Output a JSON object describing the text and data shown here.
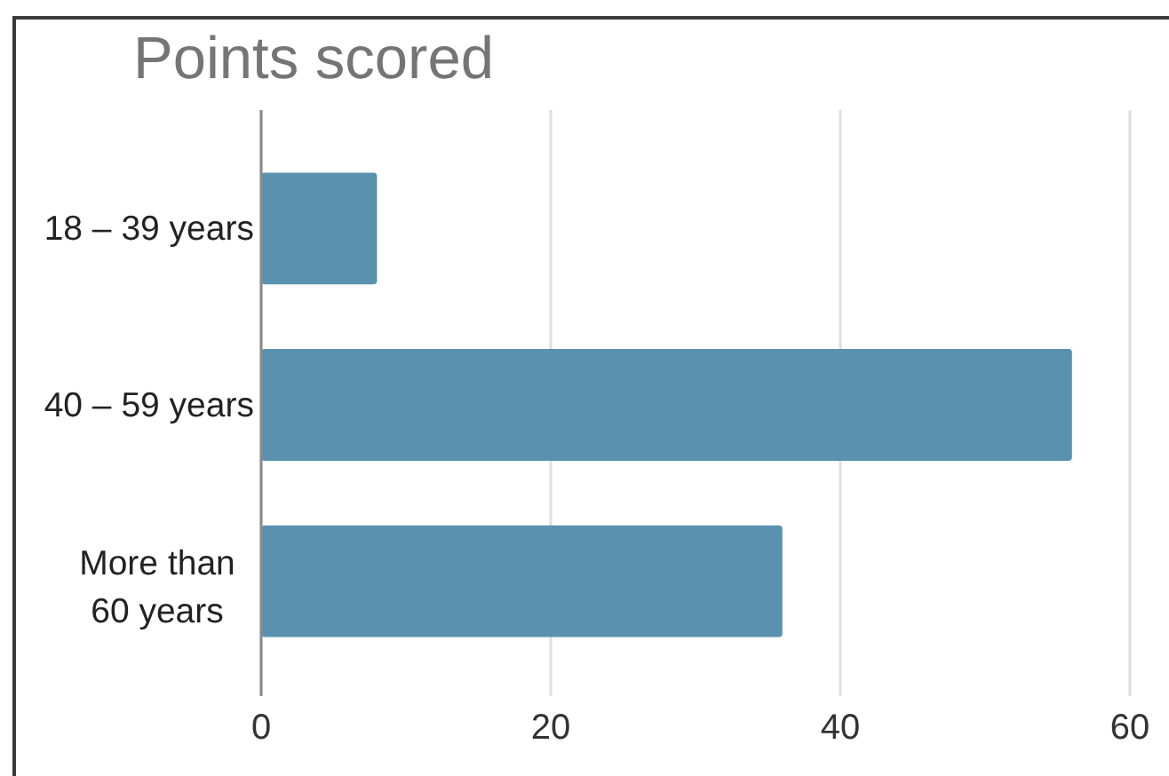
{
  "chart_data": {
    "type": "bar",
    "orientation": "horizontal",
    "title": "Points scored",
    "categories": [
      "18 – 39 years",
      "40 – 59 years",
      "More than 60 years"
    ],
    "values": [
      8,
      56,
      36
    ],
    "color": "#5a91af",
    "xlim": [
      0,
      60
    ],
    "xticks": [
      0,
      20,
      40,
      60
    ],
    "grid": "x"
  }
}
